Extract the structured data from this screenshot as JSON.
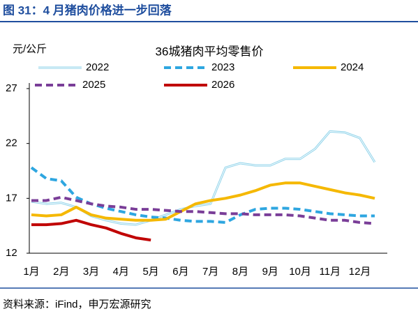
{
  "header": {
    "title": "图 31：4 月猪肉价格进一步回落"
  },
  "footer": {
    "source": "资料来源：iFind，申万宏源研究"
  },
  "chart_data": {
    "type": "line",
    "title": "36城猪肉平均零售价",
    "y_label": "元/公斤",
    "categories": [
      "1月",
      null,
      "2月",
      null,
      "3月",
      null,
      "4月",
      null,
      "5月",
      null,
      "6月",
      null,
      "7月",
      null,
      "8月",
      null,
      "9月",
      null,
      "10月",
      null,
      "11月",
      null,
      "12月",
      null
    ],
    "ylim": [
      12,
      27
    ],
    "yticks": [
      12,
      17,
      22,
      27
    ],
    "grid": false,
    "series": [
      {
        "name": "2022",
        "color": "#8fd3ea",
        "line_style": "hollow",
        "values": [
          16.7,
          16.5,
          16.6,
          16.2,
          15.4,
          15.0,
          14.7,
          14.6,
          15.0,
          15.5,
          16.0,
          16.3,
          16.5,
          19.8,
          20.2,
          20.0,
          20.0,
          20.6,
          20.6,
          21.5,
          23.1,
          23.0,
          22.5,
          20.3
        ]
      },
      {
        "name": "2023",
        "color": "#2ea6e0",
        "line_style": "dashed",
        "values": [
          19.8,
          18.8,
          18.6,
          17.1,
          16.5,
          16.1,
          15.8,
          15.5,
          15.3,
          15.2,
          15.0,
          14.9,
          14.9,
          14.8,
          15.5,
          16.0,
          16.1,
          16.1,
          16.0,
          15.8,
          15.6,
          15.5,
          15.4,
          15.4
        ]
      },
      {
        "name": "2024",
        "color": "#f5b800",
        "line_style": "solid",
        "values": [
          15.5,
          15.4,
          15.5,
          16.2,
          15.5,
          15.2,
          15.1,
          15.0,
          15.0,
          15.1,
          15.8,
          16.5,
          16.8,
          17.0,
          17.3,
          17.7,
          18.2,
          18.4,
          18.4,
          18.1,
          17.8,
          17.5,
          17.3,
          17.0
        ]
      },
      {
        "name": "2025",
        "color": "#7a3e98",
        "line_style": "dashed",
        "values": [
          16.8,
          16.8,
          17.1,
          16.8,
          16.5,
          16.3,
          16.2,
          16.0,
          16.0,
          15.9,
          15.8,
          15.8,
          15.7,
          15.6,
          15.6,
          15.5,
          15.5,
          15.5,
          15.4,
          15.2,
          15.0,
          15.0,
          14.8,
          14.7
        ]
      },
      {
        "name": "2026",
        "color": "#c00000",
        "line_style": "solid",
        "values": [
          14.6,
          14.6,
          14.7,
          15.0,
          14.6,
          14.3,
          13.8,
          13.4,
          13.2,
          null,
          null,
          null,
          null,
          null,
          null,
          null,
          null,
          null,
          null,
          null,
          null,
          null,
          null,
          null
        ]
      }
    ]
  }
}
